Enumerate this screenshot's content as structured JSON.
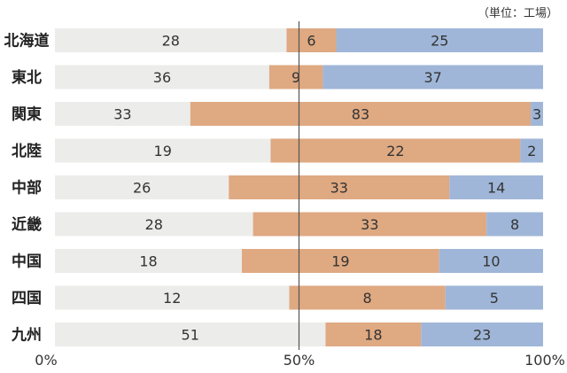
{
  "chart_data": {
    "type": "bar",
    "orientation": "horizontal",
    "stacked": "percent",
    "unit_label": "（単位：工場）",
    "categories": [
      "北海道",
      "東北",
      "関東",
      "北陸",
      "中部",
      "近畿",
      "中国",
      "四国",
      "九州"
    ],
    "series": [
      {
        "name": "series-1",
        "color": "#ececea",
        "values": [
          28,
          36,
          33,
          19,
          26,
          28,
          18,
          12,
          51
        ]
      },
      {
        "name": "series-2",
        "color": "#dfa982",
        "values": [
          6,
          9,
          83,
          22,
          33,
          33,
          19,
          8,
          18
        ]
      },
      {
        "name": "series-3",
        "color": "#9fb6d8",
        "values": [
          25,
          37,
          3,
          2,
          14,
          8,
          10,
          5,
          23
        ]
      }
    ],
    "x_ticks": [
      "0%",
      "50%",
      "100%"
    ],
    "xlim": [
      0,
      100
    ],
    "reference_line": 50
  }
}
